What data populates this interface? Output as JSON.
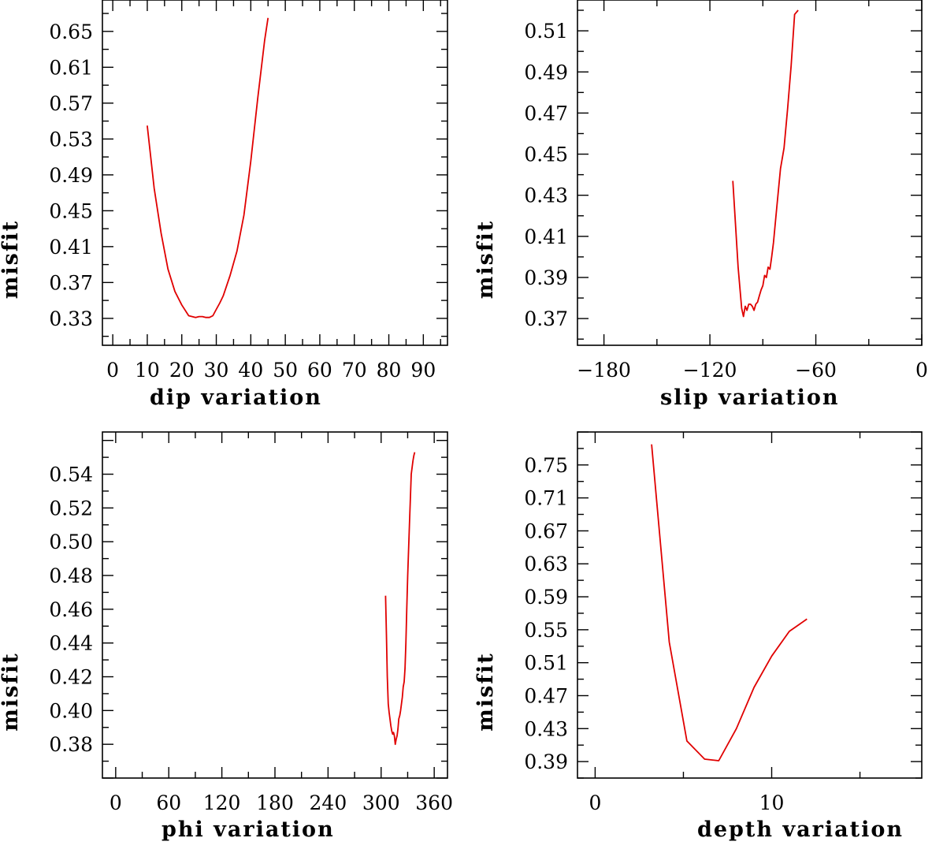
{
  "chart_data": [
    {
      "type": "line",
      "xlabel": "dip    variation",
      "ylabel": "misfit",
      "xlim": [
        -3,
        97
      ],
      "ylim": [
        0.3,
        0.685
      ],
      "xticks": [
        0,
        10,
        20,
        30,
        40,
        50,
        60,
        70,
        80,
        90
      ],
      "xticklabels": [
        "0",
        "10",
        "20",
        "30",
        "40",
        "50",
        "60",
        "70",
        "80",
        "90"
      ],
      "yticks": [
        0.33,
        0.37,
        0.41,
        0.45,
        0.49,
        0.53,
        0.57,
        0.61,
        0.65
      ],
      "yticklabels": [
        "0.33",
        "0.37",
        "0.41",
        "0.45",
        "0.49",
        "0.53",
        "0.57",
        "0.61",
        "0.65"
      ],
      "color": "#e00000",
      "series": [
        {
          "x": [
            10,
            12,
            14,
            16,
            18,
            20,
            22,
            24,
            25,
            26,
            27,
            28,
            29,
            30,
            31,
            32,
            34,
            36,
            38,
            40,
            42,
            44,
            45
          ],
          "y": [
            0.545,
            0.475,
            0.425,
            0.385,
            0.36,
            0.345,
            0.333,
            0.331,
            0.332,
            0.332,
            0.331,
            0.331,
            0.333,
            0.34,
            0.347,
            0.355,
            0.378,
            0.405,
            0.445,
            0.505,
            0.575,
            0.64,
            0.665
          ]
        }
      ]
    },
    {
      "type": "line",
      "xlabel": "slip   variation",
      "ylabel": "misfit",
      "xlim": [
        -195,
        0
      ],
      "ylim": [
        0.357,
        0.525
      ],
      "xticks": [
        -180,
        -120,
        -60,
        0
      ],
      "xticklabels": [
        "−180",
        "−120",
        "−60",
        "0"
      ],
      "yticks": [
        0.37,
        0.39,
        0.41,
        0.43,
        0.45,
        0.47,
        0.49,
        0.51
      ],
      "yticklabels": [
        "0.37",
        "0.39",
        "0.41",
        "0.43",
        "0.45",
        "0.47",
        "0.49",
        "0.51"
      ],
      "color": "#e00000",
      "series": [
        {
          "x": [
            -107,
            -104,
            -102,
            -101,
            -100,
            -99,
            -98,
            -97,
            -96,
            -95,
            -94,
            -93,
            -92,
            -91,
            -90,
            -89,
            -88,
            -87,
            -86,
            -85,
            -84,
            -82,
            -80,
            -78,
            -76,
            -74,
            -72,
            -70
          ],
          "y": [
            0.437,
            0.395,
            0.375,
            0.371,
            0.376,
            0.374,
            0.377,
            0.377,
            0.376,
            0.374,
            0.377,
            0.378,
            0.381,
            0.384,
            0.386,
            0.391,
            0.39,
            0.395,
            0.394,
            0.4,
            0.407,
            0.425,
            0.443,
            0.453,
            0.472,
            0.493,
            0.518,
            0.52
          ]
        }
      ]
    },
    {
      "type": "line",
      "xlabel": "phi    variation",
      "ylabel": "misfit",
      "xlim": [
        -15,
        375
      ],
      "ylim": [
        0.36,
        0.565
      ],
      "xticks": [
        0,
        60,
        120,
        180,
        240,
        300,
        360
      ],
      "xticklabels": [
        "0",
        "60",
        "120",
        "180",
        "240",
        "300",
        "360"
      ],
      "yticks": [
        0.38,
        0.4,
        0.42,
        0.44,
        0.46,
        0.48,
        0.5,
        0.52,
        0.54
      ],
      "yticklabels": [
        "0.38",
        "0.40",
        "0.42",
        "0.44",
        "0.46",
        "0.48",
        "0.50",
        "0.52",
        "0.54"
      ],
      "color": "#e00000",
      "series": [
        {
          "x": [
            305,
            306,
            307,
            308,
            309,
            310,
            311,
            312,
            313,
            314,
            315,
            316,
            317,
            318,
            319,
            320,
            321,
            322,
            323,
            324,
            325,
            326,
            327,
            328,
            329,
            330,
            332,
            334,
            336,
            337,
            338
          ],
          "y": [
            0.468,
            0.445,
            0.42,
            0.404,
            0.399,
            0.395,
            0.391,
            0.388,
            0.386,
            0.387,
            0.385,
            0.38,
            0.383,
            0.385,
            0.389,
            0.395,
            0.397,
            0.4,
            0.404,
            0.408,
            0.414,
            0.417,
            0.425,
            0.44,
            0.46,
            0.48,
            0.51,
            0.54,
            0.548,
            0.551,
            0.553
          ]
        }
      ]
    },
    {
      "type": "line",
      "xlabel": "depth  variation",
      "ylabel": "misfit",
      "xlim": [
        -1,
        18.5
      ],
      "ylim": [
        0.37,
        0.79
      ],
      "xticks": [
        0,
        10
      ],
      "xticklabels": [
        "0",
        "10"
      ],
      "yticks": [
        0.39,
        0.43,
        0.47,
        0.51,
        0.55,
        0.59,
        0.63,
        0.67,
        0.71,
        0.75
      ],
      "yticklabels": [
        "0.39",
        "0.43",
        "0.47",
        "0.51",
        "0.55",
        "0.59",
        "0.63",
        "0.67",
        "0.71",
        "0.75"
      ],
      "color": "#e00000",
      "series": [
        {
          "x": [
            3.2,
            4.2,
            5.2,
            6.2,
            7.0,
            8.0,
            9.0,
            10.0,
            11.0,
            12.0
          ],
          "y": [
            0.775,
            0.535,
            0.415,
            0.393,
            0.391,
            0.43,
            0.48,
            0.518,
            0.548,
            0.563
          ]
        }
      ]
    }
  ]
}
